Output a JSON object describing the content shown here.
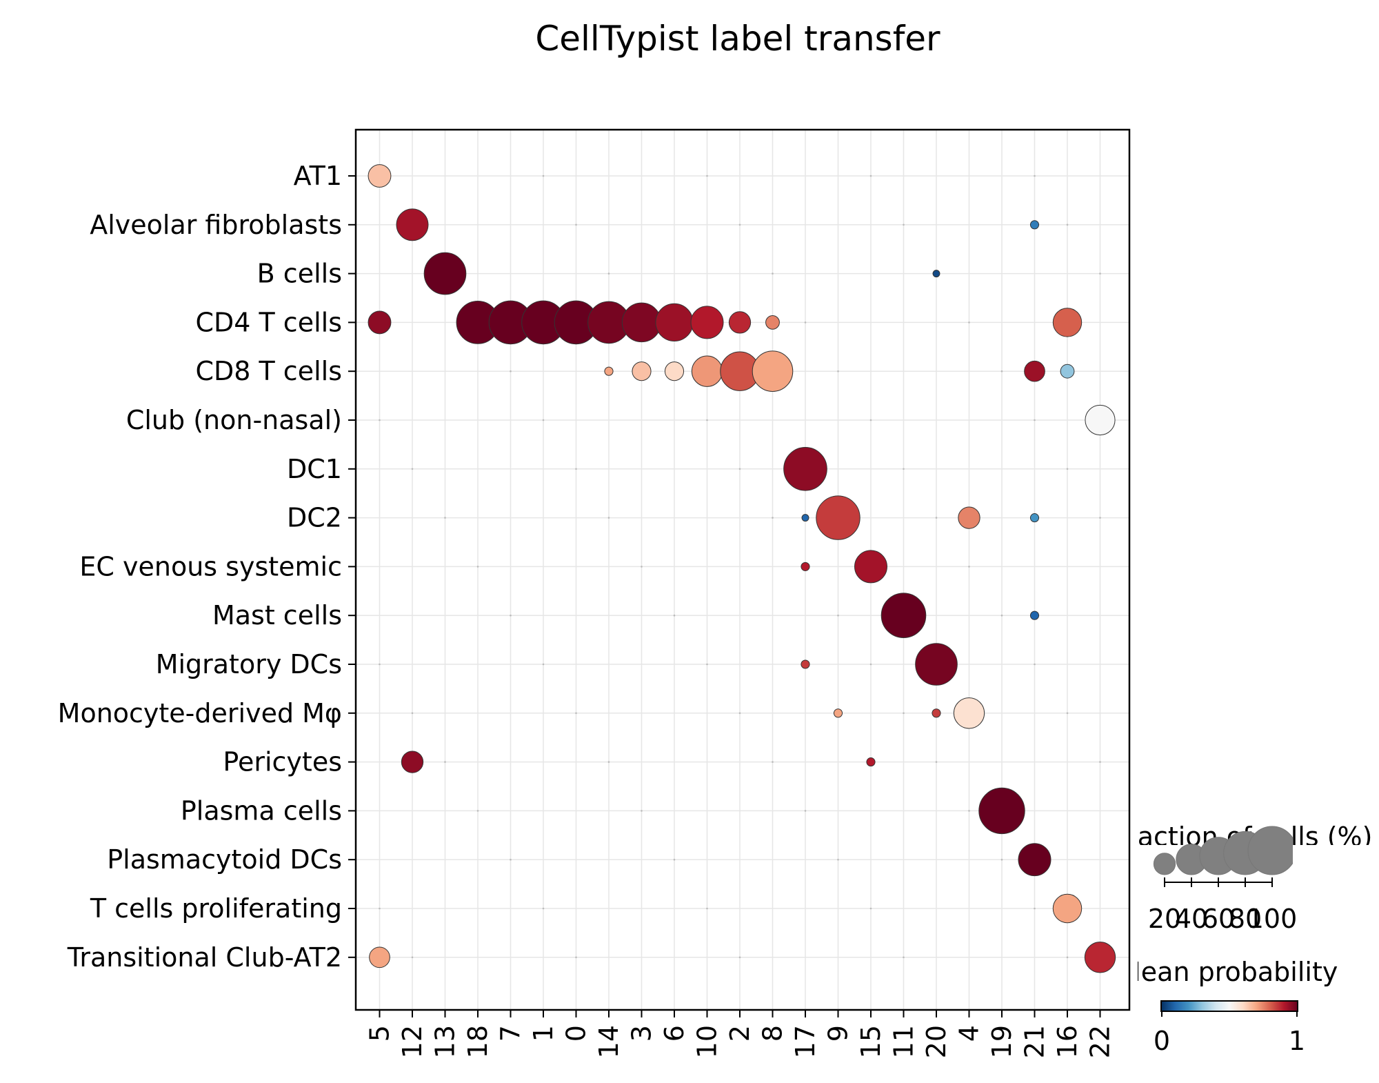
{
  "chart_data": {
    "type": "dotplot",
    "title": "CellTypist label transfer",
    "x_categories": [
      "5",
      "12",
      "13",
      "18",
      "7",
      "1",
      "0",
      "14",
      "3",
      "6",
      "10",
      "2",
      "8",
      "17",
      "9",
      "15",
      "11",
      "20",
      "4",
      "19",
      "21",
      "16",
      "22"
    ],
    "y_categories": [
      "AT1",
      "Alveolar fibroblasts",
      "B cells",
      "CD4 T cells",
      "CD8 T cells",
      "Club (non-nasal)",
      "DC1",
      "DC2",
      "EC venous systemic",
      "Mast cells",
      "Migratory DCs",
      "Monocyte-derived Mφ",
      "Pericytes",
      "Plasma cells",
      "Plasmacytoid DCs",
      "T cells proliferating",
      "Transitional Club-AT2"
    ],
    "grid": true,
    "points": [
      {
        "y": "AT1",
        "x": "5",
        "fraction": 22,
        "probability": 0.65
      },
      {
        "y": "Alveolar fibroblasts",
        "x": "12",
        "fraction": 43,
        "probability": 0.92
      },
      {
        "y": "Alveolar fibroblasts",
        "x": "21",
        "fraction": 3,
        "probability": 0.15
      },
      {
        "y": "B cells",
        "x": "13",
        "fraction": 75,
        "probability": 1.0
      },
      {
        "y": "B cells",
        "x": "20",
        "fraction": 2,
        "probability": 0.05
      },
      {
        "y": "CD4 T cells",
        "x": "5",
        "fraction": 22,
        "probability": 0.95
      },
      {
        "y": "CD4 T cells",
        "x": "18",
        "fraction": 78,
        "probability": 1.0
      },
      {
        "y": "CD4 T cells",
        "x": "7",
        "fraction": 80,
        "probability": 1.0
      },
      {
        "y": "CD4 T cells",
        "x": "1",
        "fraction": 80,
        "probability": 1.0
      },
      {
        "y": "CD4 T cells",
        "x": "0",
        "fraction": 80,
        "probability": 1.0
      },
      {
        "y": "CD4 T cells",
        "x": "14",
        "fraction": 75,
        "probability": 0.98
      },
      {
        "y": "CD4 T cells",
        "x": "3",
        "fraction": 65,
        "probability": 0.97
      },
      {
        "y": "CD4 T cells",
        "x": "6",
        "fraction": 60,
        "probability": 0.93
      },
      {
        "y": "CD4 T cells",
        "x": "10",
        "fraction": 45,
        "probability": 0.9
      },
      {
        "y": "CD4 T cells",
        "x": "2",
        "fraction": 20,
        "probability": 0.88
      },
      {
        "y": "CD4 T cells",
        "x": "8",
        "fraction": 8,
        "probability": 0.75
      },
      {
        "y": "CD4 T cells",
        "x": "16",
        "fraction": 35,
        "probability": 0.8
      },
      {
        "y": "CD8 T cells",
        "x": "3",
        "fraction": 15,
        "probability": 0.65
      },
      {
        "y": "CD8 T cells",
        "x": "6",
        "fraction": 15,
        "probability": 0.6
      },
      {
        "y": "CD8 T cells",
        "x": "10",
        "fraction": 40,
        "probability": 0.72
      },
      {
        "y": "CD8 T cells",
        "x": "2",
        "fraction": 65,
        "probability": 0.82
      },
      {
        "y": "CD8 T cells",
        "x": "8",
        "fraction": 70,
        "probability": 0.7
      },
      {
        "y": "CD8 T cells",
        "x": "14",
        "fraction": 3,
        "probability": 0.7
      },
      {
        "y": "CD8 T cells",
        "x": "21",
        "fraction": 18,
        "probability": 0.93
      },
      {
        "y": "CD8 T cells",
        "x": "16",
        "fraction": 8,
        "probability": 0.3
      },
      {
        "y": "Club (non-nasal)",
        "x": "22",
        "fraction": 38,
        "probability": 0.5
      },
      {
        "y": "DC1",
        "x": "17",
        "fraction": 80,
        "probability": 0.95
      },
      {
        "y": "DC2",
        "x": "9",
        "fraction": 82,
        "probability": 0.85
      },
      {
        "y": "DC2",
        "x": "4",
        "fraction": 20,
        "probability": 0.75
      },
      {
        "y": "DC2",
        "x": "21",
        "fraction": 3,
        "probability": 0.2
      },
      {
        "y": "DC2",
        "x": "17",
        "fraction": 2,
        "probability": 0.1
      },
      {
        "y": "EC venous systemic",
        "x": "15",
        "fraction": 45,
        "probability": 0.92
      },
      {
        "y": "EC venous systemic",
        "x": "17",
        "fraction": 3,
        "probability": 0.9
      },
      {
        "y": "Mast cells",
        "x": "11",
        "fraction": 85,
        "probability": 1.0
      },
      {
        "y": "Mast cells",
        "x": "21",
        "fraction": 3,
        "probability": 0.1
      },
      {
        "y": "Migratory DCs",
        "x": "20",
        "fraction": 75,
        "probability": 0.98
      },
      {
        "y": "Migratory DCs",
        "x": "17",
        "fraction": 3,
        "probability": 0.85
      },
      {
        "y": "Monocyte-derived Mφ",
        "x": "4",
        "fraction": 40,
        "probability": 0.58
      },
      {
        "y": "Monocyte-derived Mφ",
        "x": "20",
        "fraction": 3,
        "probability": 0.85
      },
      {
        "y": "Monocyte-derived Mφ",
        "x": "9",
        "fraction": 3,
        "probability": 0.7
      },
      {
        "y": "Pericytes",
        "x": "12",
        "fraction": 20,
        "probability": 0.95
      },
      {
        "y": "Pericytes",
        "x": "15",
        "fraction": 3,
        "probability": 0.9
      },
      {
        "y": "Plasma cells",
        "x": "19",
        "fraction": 90,
        "probability": 1.0
      },
      {
        "y": "Plasmacytoid DCs",
        "x": "21",
        "fraction": 45,
        "probability": 1.0
      },
      {
        "y": "T cells proliferating",
        "x": "16",
        "fraction": 35,
        "probability": 0.7
      },
      {
        "y": "Transitional Club-AT2",
        "x": "5",
        "fraction": 18,
        "probability": 0.7
      },
      {
        "y": "Transitional Club-AT2",
        "x": "22",
        "fraction": 40,
        "probability": 0.88
      }
    ],
    "size_legend": {
      "title": "Fraction of cells (%)",
      "values": [
        20,
        40,
        60,
        80,
        100
      ],
      "labels": [
        "20",
        "40",
        "60",
        "80",
        "100"
      ]
    },
    "color_legend": {
      "title": "Mean probability",
      "range": [
        0,
        1
      ],
      "labels": [
        "0",
        "1"
      ],
      "colormap": "RdBu_r",
      "colors": [
        "#053061",
        "#2166ac",
        "#4393c3",
        "#92c5de",
        "#d1e5f0",
        "#f7f7f7",
        "#fddbc7",
        "#f4a582",
        "#d6604d",
        "#b2182b",
        "#67001f"
      ]
    }
  }
}
